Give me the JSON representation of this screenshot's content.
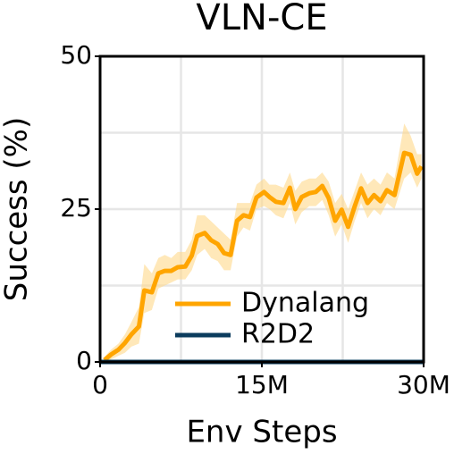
{
  "chart_data": {
    "type": "line",
    "title": "VLN-CE",
    "x_label": "Env Steps",
    "y_label": "Success (%)",
    "xlim": [
      0,
      30000000
    ],
    "ylim": [
      0,
      50
    ],
    "xticks": [
      0,
      {
        "value": 15000000,
        "label": "15M"
      },
      {
        "value": 30000000,
        "label": "30M"
      }
    ],
    "yticks": [
      0,
      25,
      50
    ],
    "xgrid": [
      7500000,
      15000000,
      22500000
    ],
    "ygrid": [
      12.5,
      25,
      37.5
    ],
    "legend": "lower center",
    "series": [
      {
        "name": "Dynalang",
        "color": "#ffa500",
        "band_color": "#ffd98a",
        "x": [
          400000,
          1000000,
          1700000,
          2300000,
          2900000,
          3600000,
          4100000,
          4800000,
          5400000,
          6000000,
          6600000,
          7200000,
          7900000,
          8500000,
          9000000,
          9700000,
          10300000,
          10900000,
          11500000,
          12100000,
          12700000,
          13300000,
          13900000,
          14500000,
          15200000,
          15700000,
          16300000,
          17000000,
          17600000,
          18100000,
          18700000,
          19400000,
          20000000,
          20600000,
          21200000,
          21800000,
          22400000,
          23000000,
          23600000,
          24200000,
          24800000,
          25400000,
          26000000,
          26600000,
          27300000,
          28200000,
          28800000,
          29400000,
          29800000
        ],
        "values": [
          0.3,
          1.2,
          2.0,
          3.1,
          4.5,
          5.8,
          11.7,
          11.4,
          14.5,
          14.9,
          14.9,
          15.5,
          15.6,
          17.4,
          20.6,
          21.1,
          19.9,
          19.3,
          17.8,
          17.5,
          23.1,
          24.0,
          23.7,
          26.9,
          27.8,
          27.0,
          26.2,
          26.0,
          28.5,
          25.0,
          27.0,
          27.6,
          27.8,
          28.8,
          26.8,
          23.1,
          24.9,
          22.1,
          25.4,
          28.4,
          26.0,
          27.3,
          26.3,
          28.1,
          27.3,
          34.2,
          33.9,
          30.8,
          32.0
        ],
        "upper": [
          0.8,
          2.0,
          3.0,
          4.5,
          6.5,
          9.0,
          16,
          14.5,
          17,
          17.5,
          17,
          18,
          18,
          20,
          24,
          24,
          23,
          22,
          21,
          20,
          26,
          26,
          26,
          29,
          30,
          29,
          29,
          28.5,
          31,
          28,
          29.5,
          30,
          30,
          31,
          29.5,
          26,
          27.5,
          25,
          28,
          31,
          29,
          30,
          29,
          31,
          30,
          39,
          37,
          34,
          34
        ],
        "lower": [
          0,
          0.4,
          1,
          1.5,
          2.5,
          3,
          8,
          8.5,
          12,
          12.5,
          13,
          13.5,
          13.5,
          15,
          17.5,
          18.5,
          17,
          16.5,
          15,
          15,
          20.5,
          22,
          21.5,
          25,
          25.5,
          25,
          24,
          23.5,
          26,
          22.5,
          24.5,
          25.5,
          25.5,
          26.5,
          24,
          20.5,
          22.5,
          19.5,
          23,
          26,
          23.5,
          25,
          24,
          26,
          25,
          30,
          31,
          28.5,
          30
        ]
      },
      {
        "name": "R2D2",
        "color": "#0b3c5d",
        "x": [
          0,
          30000000
        ],
        "values": [
          0,
          0
        ]
      }
    ]
  }
}
